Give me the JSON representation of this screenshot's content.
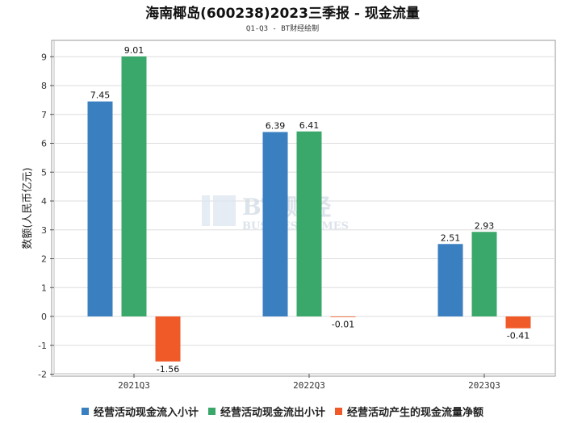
{
  "colors": {
    "inflow": "#3a7fc0",
    "outflow": "#3aa86b",
    "net": "#f05a28",
    "grid": "#dddddd",
    "axis": "#555555"
  },
  "watermark": {
    "cn": "BT 财经",
    "en": "BUSINESS TIMES"
  },
  "chart_data": {
    "type": "bar",
    "title": "海南椰岛(600238)2023三季报 - 现金流量",
    "subtitle": "Q1-Q3 - BT财经绘制",
    "ylabel": "数额(人民币亿元)",
    "xlabel": "",
    "ylim": [
      -2,
      10
    ],
    "yticks": [
      -2,
      -1,
      0,
      1,
      2,
      3,
      4,
      5,
      6,
      7,
      8,
      9
    ],
    "categories": [
      "2021Q3",
      "2022Q3",
      "2023Q3"
    ],
    "series": [
      {
        "name": "经营活动现金流入小计",
        "color_key": "inflow",
        "values": [
          7.45,
          6.39,
          2.51
        ],
        "labels": [
          "7.45",
          "6.39",
          "2.51"
        ]
      },
      {
        "name": "经营活动现金流出小计",
        "color_key": "outflow",
        "values": [
          9.01,
          6.41,
          2.93
        ],
        "labels": [
          "9.01",
          "6.41",
          "2.93"
        ]
      },
      {
        "name": "经营活动产生的现金流量净额",
        "color_key": "net",
        "values": [
          -1.56,
          -0.01,
          -0.41
        ],
        "labels": [
          "-1.56",
          "-0.01",
          "-0.41"
        ]
      }
    ],
    "grid": true,
    "legend": "bottom"
  }
}
